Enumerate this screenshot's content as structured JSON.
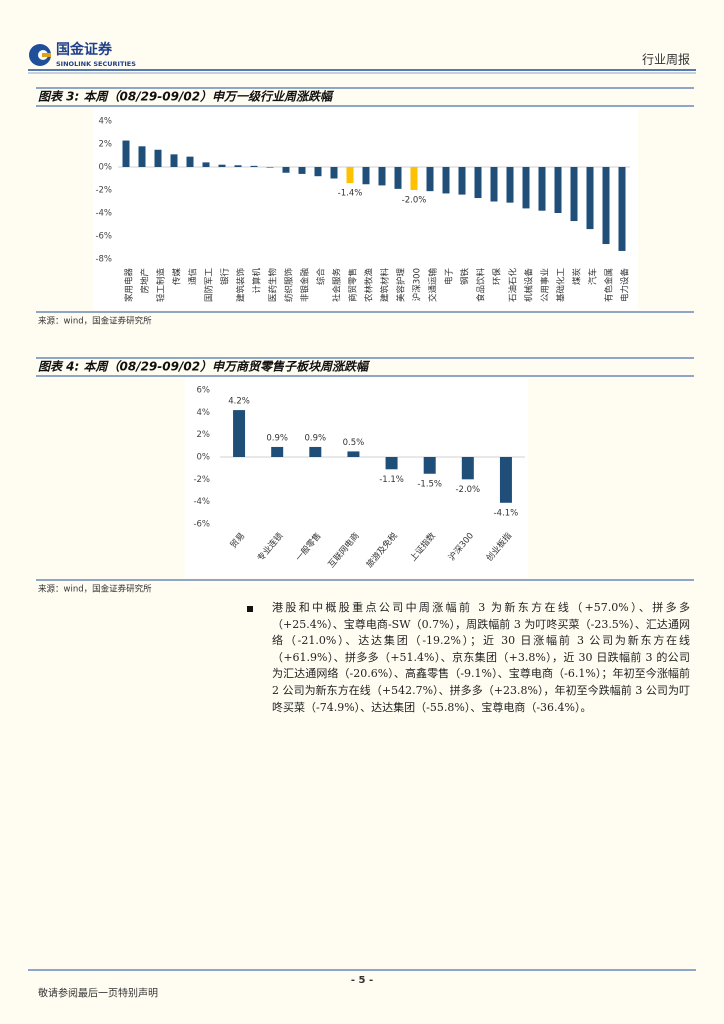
{
  "document": {
    "company": "国金证券",
    "company_en": "SINOLINK SECURITIES",
    "report_type": "行业周报",
    "paragraph": "港股和中概股重点公司中周涨幅前 3 为新东方在线（+57.0%）、拼多多（+25.4%）、宝尊电商-SW（0.7%），周跌幅前 3 为叮咚买菜（-23.5%）、汇达通网络（-21.0%）、达达集团（-19.2%）；近 30 日涨幅前 3 公司为新东方在线（+61.9%）、拼多多（+51.4%）、京东集团（+3.8%），近 30 日跌幅前 3 的公司为汇达通网络（-20.6%）、高鑫零售（-9.1%）、宝尊电商（-6.1%）；年初至今涨幅前 2 公司为新东方在线（+542.7%）、拼多多（+23.8%），年初至今跌幅前 3 公司为叮咚买菜（-74.9%）、达达集团（-55.8%）、宝尊电商（-36.4%）。",
    "page_number": "- 5 -",
    "footer": "敬请参阅最后一页特别声明"
  },
  "chart_data": [
    {
      "type": "bar",
      "title": "图表 3: 本周（08/29-09/02）申万一级行业周涨跌幅",
      "source": "来源：wind，国金证券研究所",
      "categories": [
        "家用电器",
        "房地产",
        "轻工制造",
        "传媒",
        "通信",
        "国防军工",
        "银行",
        "建筑装饰",
        "计算机",
        "医药生物",
        "纺织服饰",
        "非银金融",
        "综合",
        "社会服务",
        "商贸零售",
        "农林牧渔",
        "建筑材料",
        "美容护理",
        "沪深300",
        "交通运输",
        "电子",
        "钢铁",
        "食品饮料",
        "环保",
        "石油石化",
        "机械设备",
        "公用事业",
        "基础化工",
        "煤炭",
        "汽车",
        "有色金属",
        "电力设备"
      ],
      "values": [
        2.3,
        1.8,
        1.5,
        1.1,
        0.9,
        0.4,
        0.2,
        0.15,
        0.1,
        -0.05,
        -0.5,
        -0.6,
        -0.8,
        -1.0,
        -1.4,
        -1.5,
        -1.6,
        -1.9,
        -2.0,
        -2.1,
        -2.3,
        -2.4,
        -2.7,
        -3.0,
        -3.1,
        -3.6,
        -3.8,
        -4.0,
        -4.7,
        -5.4,
        -6.7,
        -7.3
      ],
      "value_labels": [
        null,
        null,
        null,
        null,
        null,
        null,
        null,
        null,
        null,
        null,
        null,
        null,
        null,
        null,
        "-1.4%",
        null,
        null,
        null,
        "-2.0%",
        null,
        null,
        null,
        null,
        null,
        null,
        null,
        null,
        null,
        null,
        null,
        null,
        null
      ],
      "colors": [
        "#1f4e79",
        "#1f4e79",
        "#1f4e79",
        "#1f4e79",
        "#1f4e79",
        "#1f4e79",
        "#1f4e79",
        "#1f4e79",
        "#1f4e79",
        "#1f4e79",
        "#1f4e79",
        "#1f4e79",
        "#1f4e79",
        "#1f4e79",
        "#ffc000",
        "#1f4e79",
        "#1f4e79",
        "#1f4e79",
        "#ffc000",
        "#1f4e79",
        "#1f4e79",
        "#1f4e79",
        "#1f4e79",
        "#1f4e79",
        "#1f4e79",
        "#1f4e79",
        "#1f4e79",
        "#1f4e79",
        "#1f4e79",
        "#1f4e79",
        "#1f4e79",
        "#1f4e79"
      ],
      "ylim": [
        -8,
        4
      ],
      "yticks": [
        {
          "value": 4,
          "label": "4%"
        },
        {
          "value": 2,
          "label": "2%"
        },
        {
          "value": 0,
          "label": "0%"
        },
        {
          "value": -2,
          "label": "-2%"
        },
        {
          "value": -4,
          "label": "-4%"
        },
        {
          "value": -6,
          "label": "-6%"
        },
        {
          "value": -8,
          "label": "-8%"
        }
      ],
      "grid": false
    },
    {
      "type": "bar",
      "title": "图表 4: 本周（08/29-09/02）申万商贸零售子板块周涨跌幅",
      "source": "来源：wind，国金证券研究所",
      "categories": [
        "贸易",
        "专业连锁",
        "一般零售",
        "互联网电商",
        "旅游及免税",
        "上证指数",
        "沪深300",
        "创业板指"
      ],
      "values": [
        4.2,
        0.9,
        0.9,
        0.5,
        -1.1,
        -1.5,
        -2.0,
        -4.1
      ],
      "value_labels": [
        "4.2%",
        "0.9%",
        "0.9%",
        "0.5%",
        "-1.1%",
        "-1.5%",
        "-2.0%",
        "-4.1%"
      ],
      "color": "#1f4e79",
      "ylim": [
        -6,
        6
      ],
      "yticks": [
        {
          "value": 6,
          "label": "6%"
        },
        {
          "value": 4,
          "label": "4%"
        },
        {
          "value": 2,
          "label": "2%"
        },
        {
          "value": 0,
          "label": "0%"
        },
        {
          "value": -2,
          "label": "-2%"
        },
        {
          "value": -4,
          "label": "-4%"
        },
        {
          "value": -6,
          "label": "-6%"
        }
      ],
      "grid": false
    }
  ]
}
